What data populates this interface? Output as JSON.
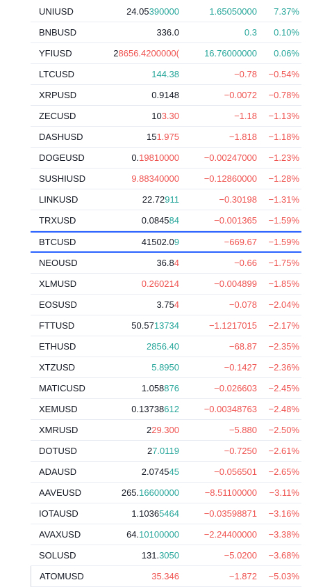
{
  "watchlist": {
    "rows": [
      {
        "symbol": "UNIUSD",
        "price_a": "24.05",
        "price_b": "390000",
        "pb": "up",
        "change": "1.65050000",
        "cc": "up",
        "pct": "7.37%",
        "pc": "up"
      },
      {
        "symbol": "BNBUSD",
        "price_a": "336.0",
        "price_b": "",
        "pb": "neutral",
        "change": "0.3",
        "cc": "up",
        "pct": "0.10%",
        "pc": "up"
      },
      {
        "symbol": "YFIUSD",
        "price_a": "2",
        "price_b": "8656.4200000(",
        "pb": "down",
        "change": "16.76000000",
        "cc": "up",
        "pct": "0.06%",
        "pc": "up"
      },
      {
        "symbol": "LTCUSD",
        "price_a": "",
        "price_b": "144.38",
        "pb": "up",
        "change": "−0.78",
        "cc": "down",
        "pct": "−0.54%",
        "pc": "down"
      },
      {
        "symbol": "XRPUSD",
        "price_a": "0.9148",
        "price_b": "",
        "pb": "neutral",
        "change": "−0.0072",
        "cc": "down",
        "pct": "−0.78%",
        "pc": "down"
      },
      {
        "symbol": "ZECUSD",
        "price_a": "10",
        "price_b": "3.30",
        "pb": "down",
        "change": "−1.18",
        "cc": "down",
        "pct": "−1.13%",
        "pc": "down"
      },
      {
        "symbol": "DASHUSD",
        "price_a": "15",
        "price_b": "1.975",
        "pb": "down",
        "change": "−1.818",
        "cc": "down",
        "pct": "−1.18%",
        "pc": "down"
      },
      {
        "symbol": "DOGEUSD",
        "price_a": "0.",
        "price_b": "19810000",
        "pb": "down",
        "change": "−0.00247000",
        "cc": "down",
        "pct": "−1.23%",
        "pc": "down"
      },
      {
        "symbol": "SUSHIUSD",
        "price_a": "",
        "price_b": "9.88340000",
        "pb": "down",
        "change": "−0.12860000",
        "cc": "down",
        "pct": "−1.28%",
        "pc": "down"
      },
      {
        "symbol": "LINKUSD",
        "price_a": "22.72",
        "price_b": "911",
        "pb": "up",
        "change": "−0.30198",
        "cc": "down",
        "pct": "−1.31%",
        "pc": "down"
      },
      {
        "symbol": "TRXUSD",
        "price_a": "0.0845",
        "price_b": "84",
        "pb": "up",
        "change": "−0.001365",
        "cc": "down",
        "pct": "−1.59%",
        "pc": "down"
      },
      {
        "symbol": "BTCUSD",
        "price_a": "41502.0",
        "price_b": "9",
        "pb": "up",
        "change": "−669.67",
        "cc": "down",
        "pct": "−1.59%",
        "pc": "down",
        "highlight": true
      },
      {
        "symbol": "NEOUSD",
        "price_a": "36.8",
        "price_b": "4",
        "pb": "down",
        "change": "−0.66",
        "cc": "down",
        "pct": "−1.75%",
        "pc": "down"
      },
      {
        "symbol": "XLMUSD",
        "price_a": "",
        "price_b": "0.260214",
        "pb": "down",
        "change": "−0.004899",
        "cc": "down",
        "pct": "−1.85%",
        "pc": "down"
      },
      {
        "symbol": "EOSUSD",
        "price_a": "3.75",
        "price_b": "4",
        "pb": "down",
        "change": "−0.078",
        "cc": "down",
        "pct": "−2.04%",
        "pc": "down"
      },
      {
        "symbol": "FTTUSD",
        "price_a": "50.57",
        "price_b": "13734",
        "pb": "up",
        "change": "−1.1217015",
        "cc": "down",
        "pct": "−2.17%",
        "pc": "down"
      },
      {
        "symbol": "ETHUSD",
        "price_a": "",
        "price_b": "2856.40",
        "pb": "up",
        "change": "−68.87",
        "cc": "down",
        "pct": "−2.35%",
        "pc": "down"
      },
      {
        "symbol": "XTZUSD",
        "price_a": "",
        "price_b": "5.8950",
        "pb": "up",
        "change": "−0.1427",
        "cc": "down",
        "pct": "−2.36%",
        "pc": "down"
      },
      {
        "symbol": "MATICUSD",
        "price_a": "1.058",
        "price_b": "876",
        "pb": "up",
        "change": "−0.026603",
        "cc": "down",
        "pct": "−2.45%",
        "pc": "down"
      },
      {
        "symbol": "XEMUSD",
        "price_a": "0.13738",
        "price_b": "612",
        "pb": "up",
        "change": "−0.00348763",
        "cc": "down",
        "pct": "−2.48%",
        "pc": "down"
      },
      {
        "symbol": "XMRUSD",
        "price_a": "2",
        "price_b": "29.300",
        "pb": "down",
        "change": "−5.880",
        "cc": "down",
        "pct": "−2.50%",
        "pc": "down"
      },
      {
        "symbol": "DOTUSD",
        "price_a": "2",
        "price_b": "7.0119",
        "pb": "up",
        "change": "−0.7250",
        "cc": "down",
        "pct": "−2.61%",
        "pc": "down"
      },
      {
        "symbol": "ADAUSD",
        "price_a": "2.0745",
        "price_b": "45",
        "pb": "up",
        "change": "−0.056501",
        "cc": "down",
        "pct": "−2.65%",
        "pc": "down"
      },
      {
        "symbol": "AAVEUSD",
        "price_a": "265.",
        "price_b": "16600000",
        "pb": "up",
        "change": "−8.51100000",
        "cc": "down",
        "pct": "−3.11%",
        "pc": "down"
      },
      {
        "symbol": "IOTAUSD",
        "price_a": "1.1036",
        "price_b": "5464",
        "pb": "up",
        "change": "−0.03598871",
        "cc": "down",
        "pct": "−3.16%",
        "pc": "down"
      },
      {
        "symbol": "AVAXUSD",
        "price_a": "64.",
        "price_b": "10100000",
        "pb": "up",
        "change": "−2.24400000",
        "cc": "down",
        "pct": "−3.38%",
        "pc": "down"
      },
      {
        "symbol": "SOLUSD",
        "price_a": "131.",
        "price_b": "3050",
        "pb": "up",
        "change": "−5.0200",
        "cc": "down",
        "pct": "−3.68%",
        "pc": "down"
      },
      {
        "symbol": "ATOMUSD",
        "price_a": "",
        "price_b": "35.346",
        "pb": "down",
        "change": "−1.872",
        "cc": "down",
        "pct": "−5.03%",
        "pc": "down",
        "last": true
      }
    ]
  }
}
